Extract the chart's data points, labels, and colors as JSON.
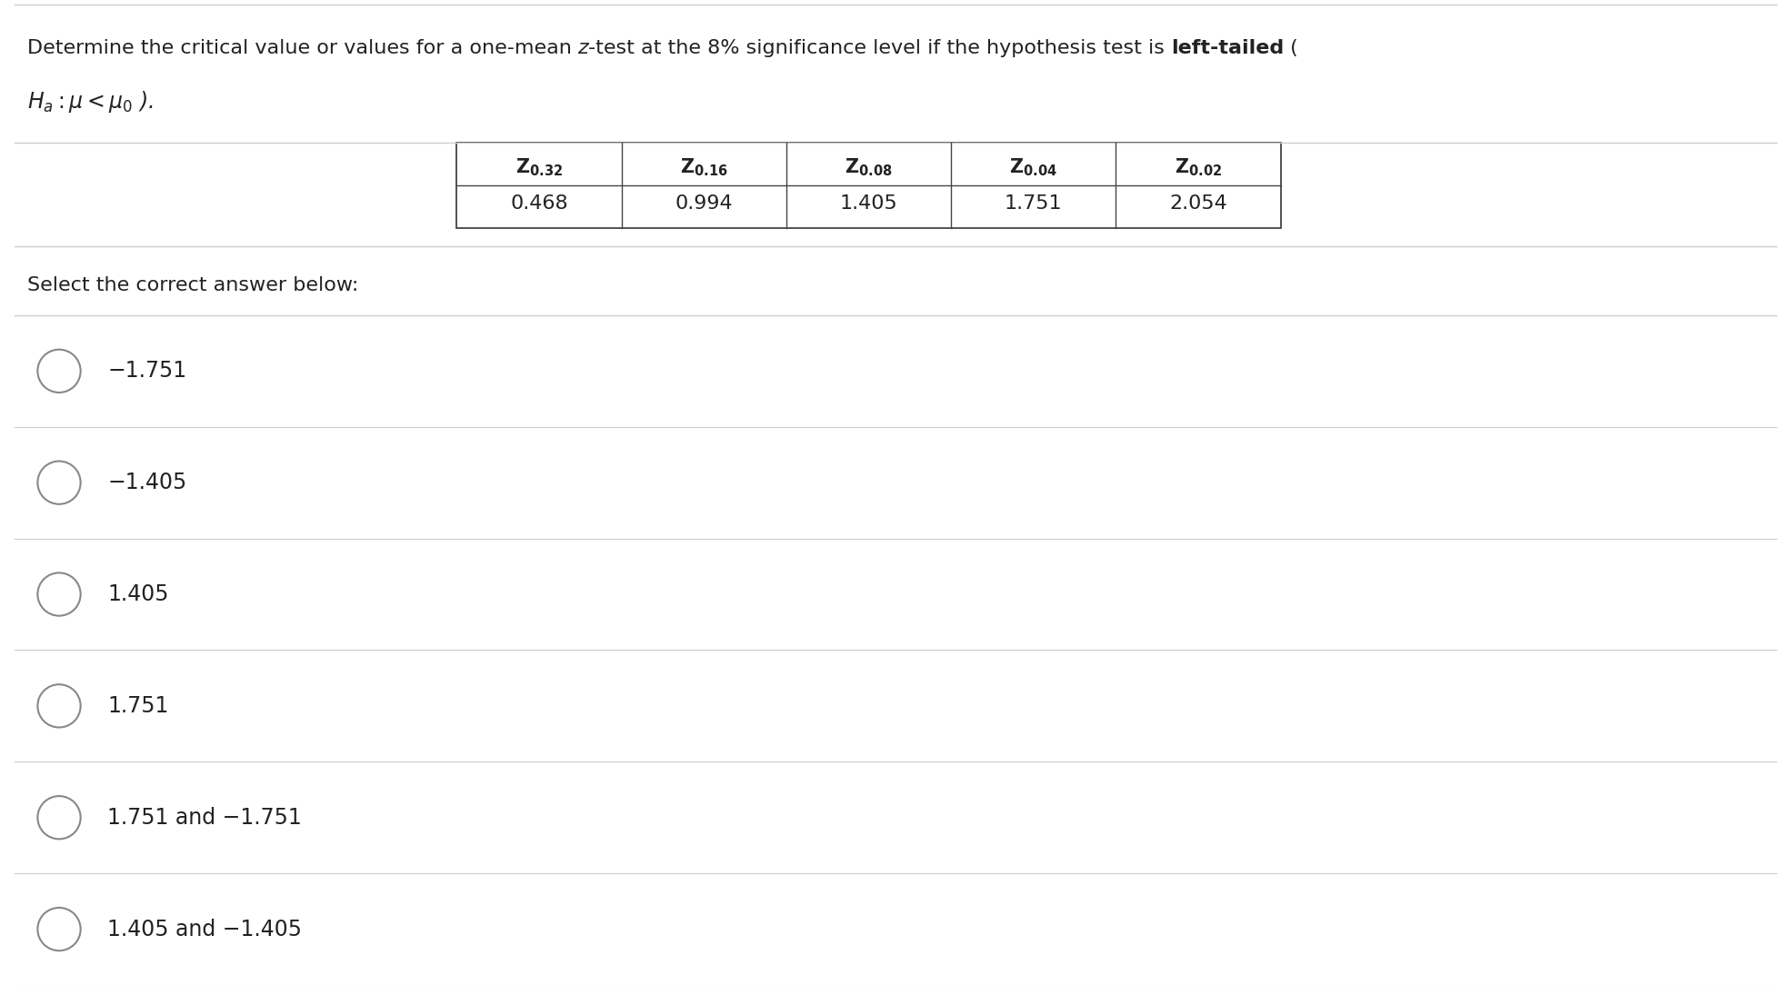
{
  "table_headers": [
    "Z_{0.32}",
    "Z_{0.16}",
    "Z_{0.08}",
    "Z_{0.04}",
    "Z_{0.02}"
  ],
  "table_values": [
    "0.468",
    "0.994",
    "1.405",
    "1.751",
    "2.054"
  ],
  "select_text": "Select the correct answer below:",
  "options": [
    "−1.751",
    "−1.405",
    "1.405",
    "1.751",
    "1.751 and −1.751",
    "1.405 and −1.405"
  ],
  "background_color": "#ffffff",
  "text_color": "#222222",
  "line_color": "#cccccc",
  "table_border_color": "#444444",
  "font_size_main": 16,
  "font_size_table_hdr": 15,
  "font_size_table_val": 16,
  "font_size_options": 17,
  "fig_width": 19.7,
  "fig_height": 10.84,
  "dpi": 100
}
